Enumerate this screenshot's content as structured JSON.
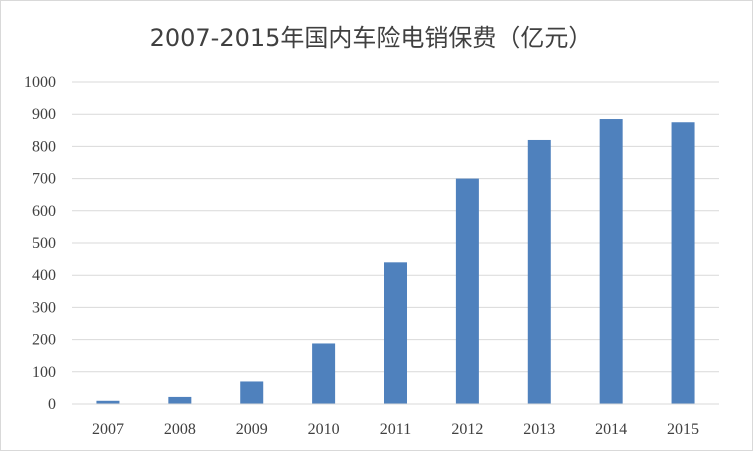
{
  "chart_data": {
    "type": "bar",
    "title": "2007-2015年国内车险电销保费（亿元）",
    "xlabel": "",
    "ylabel": "",
    "categories": [
      "2007",
      "2008",
      "2009",
      "2010",
      "2011",
      "2012",
      "2013",
      "2014",
      "2015"
    ],
    "values": [
      10,
      22,
      70,
      188,
      440,
      700,
      820,
      885,
      875
    ],
    "ylim": [
      0,
      1000
    ],
    "yticks": [
      "0",
      "100",
      "200",
      "300",
      "400",
      "500",
      "600",
      "700",
      "800",
      "900",
      "1000"
    ],
    "grid": true,
    "legend": "none",
    "colors": {
      "bar": "#4f81bd",
      "grid": "#d9d9d9",
      "text": "#404040"
    }
  }
}
